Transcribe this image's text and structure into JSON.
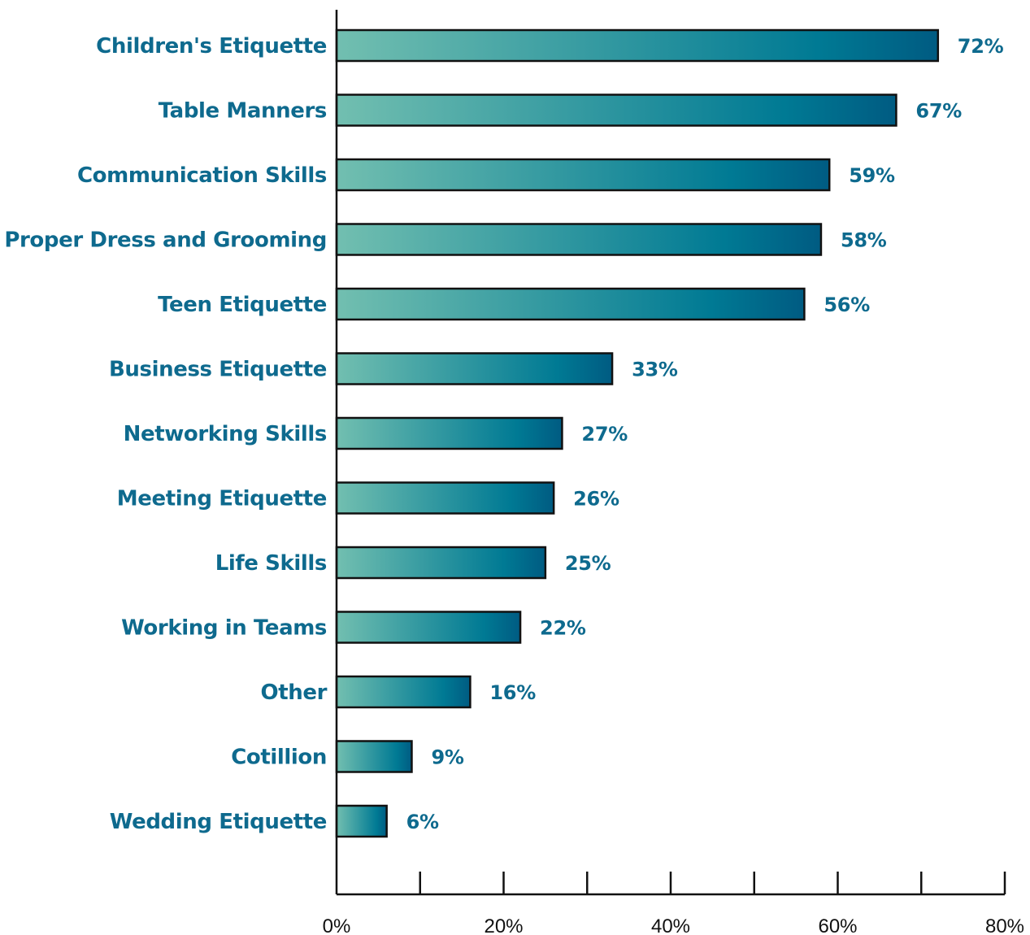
{
  "chart_data": {
    "type": "bar",
    "orientation": "horizontal",
    "title": "",
    "xlabel": "",
    "ylabel": "",
    "categories": [
      "Children's Etiquette",
      "Table Manners",
      "Communication Skills",
      "Proper Dress and Grooming",
      "Teen Etiquette",
      "Business Etiquette",
      "Networking Skills",
      "Meeting Etiquette",
      "Life Skills",
      "Working in Teams",
      "Other",
      "Cotillion",
      "Wedding Etiquette"
    ],
    "values": [
      72,
      67,
      59,
      58,
      56,
      33,
      27,
      26,
      25,
      22,
      16,
      9,
      6
    ],
    "value_labels": [
      "72%",
      "67%",
      "59%",
      "58%",
      "56%",
      "33%",
      "27%",
      "26%",
      "25%",
      "22%",
      "16%",
      "9%",
      "6%"
    ],
    "xlim": [
      0,
      80
    ],
    "x_ticks": [
      0,
      20,
      40,
      60,
      80
    ],
    "x_tick_labels": [
      "0%",
      "20%",
      "40%",
      "60%",
      "80%"
    ],
    "minor_ticks_every": 10,
    "grid": false,
    "legend": "none",
    "colors": {
      "label_text": "#0e6a8e",
      "bar_gradient_start": "#72bfb0",
      "bar_gradient_mid": "#007a94",
      "bar_gradient_end": "#005b82",
      "bar_outline": "#111111",
      "axis": "#111111"
    }
  }
}
